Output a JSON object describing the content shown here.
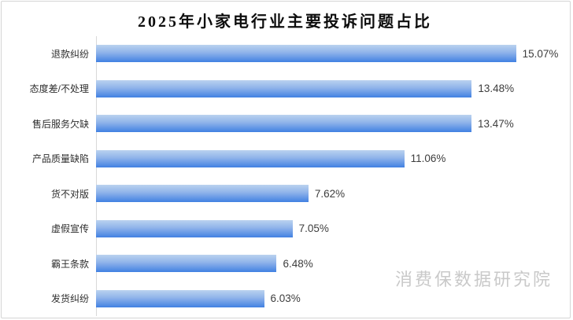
{
  "title": "2025年小家电行业主要投诉问题占比",
  "watermark": "消费保数据研究院",
  "colors": {
    "bar_gradient_top": "#bad2ef",
    "bar_gradient_bottom": "#4181e2",
    "axis_line": "#d9d9d9",
    "frame_border": "#d5d5d5",
    "title_text": "#0d0d0d",
    "label_text": "#2e2e2e",
    "value_text": "#3d3d3d",
    "watermark_text": "#c9c9c9"
  },
  "chart_data": {
    "type": "bar",
    "orientation": "horizontal",
    "title": "2025年小家电行业主要投诉问题占比",
    "categories": [
      "退款纠纷",
      "态度差/不处理",
      "售后服务欠缺",
      "产品质量缺陷",
      "货不对版",
      "虚假宣传",
      "霸王条款",
      "发货纠纷"
    ],
    "values": [
      15.07,
      13.48,
      13.47,
      11.06,
      7.62,
      7.05,
      6.48,
      6.03
    ],
    "value_labels": [
      "15.07%",
      "13.48%",
      "13.47%",
      "11.06%",
      "7.62%",
      "7.05%",
      "6.48%",
      "6.03%"
    ],
    "xlabel": "",
    "ylabel": "",
    "xlim": [
      0,
      17
    ],
    "grid": false,
    "legend": false,
    "annotation": "消费保数据研究院"
  }
}
